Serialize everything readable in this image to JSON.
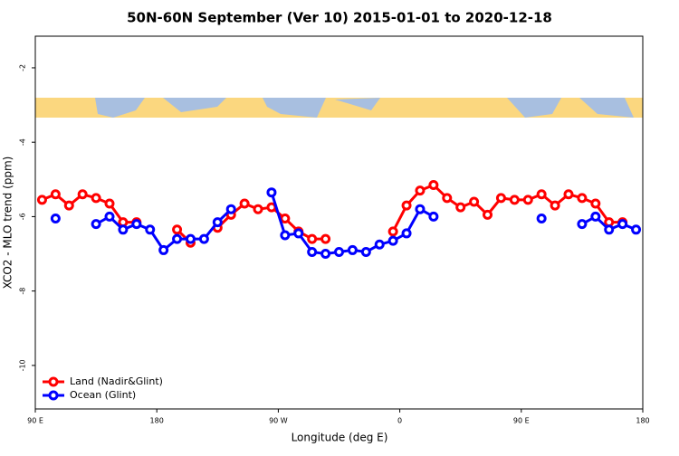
{
  "chart_data": {
    "type": "line",
    "title": "50N-60N September (Ver 10)   2015-01-01 to 2020-12-18",
    "x_label": "Longitude (deg E)",
    "y_label": "XCO2 - MLO trend (ppm)",
    "x": [
      95,
      105,
      115,
      125,
      135,
      145,
      155,
      165,
      175,
      185,
      195,
      205,
      215,
      225,
      235,
      245,
      255,
      265,
      275,
      285,
      295,
      305,
      315,
      325,
      335,
      345,
      355,
      365,
      375,
      385,
      395,
      405,
      415,
      425,
      435,
      445,
      455,
      465,
      475,
      485,
      495,
      505,
      515,
      525,
      535
    ],
    "xlim": [
      90,
      540
    ],
    "xticks": [
      {
        "value": 90,
        "label": "90 E"
      },
      180,
      {
        "value": 270,
        "label": "90 W"
      },
      {
        "value": 360,
        "label": "0"
      },
      {
        "value": 450,
        "label": "90 E"
      },
      {
        "value": 540,
        "label": "180"
      }
    ],
    "ylim": [
      -11.17,
      -1.15
    ],
    "yticks": [
      -10,
      -8,
      -6,
      -4,
      -2
    ],
    "legend": "bottom-left",
    "series": [
      {
        "name": "Land (Nadir&Glint)",
        "color": "#ff0000",
        "values": [
          -5.55,
          -5.4,
          -5.7,
          -5.4,
          -5.5,
          -5.65,
          -6.15,
          -6.15,
          null,
          null,
          -6.35,
          -6.7,
          null,
          -6.3,
          -5.95,
          -5.65,
          -5.8,
          -5.75,
          -6.05,
          -6.4,
          -6.6,
          -6.6,
          null,
          null,
          null,
          null,
          -6.4,
          -5.7,
          -5.3,
          -5.15,
          -5.5,
          -5.75,
          -5.6,
          -5.95,
          -5.5,
          -5.55,
          -5.55,
          -5.4,
          -5.7,
          -5.4,
          -5.5,
          -5.65,
          -6.15,
          -6.15,
          null
        ]
      },
      {
        "name": "Ocean (Glint)",
        "color": "#0000ff",
        "values": [
          null,
          -6.05,
          null,
          null,
          -6.2,
          -6.0,
          -6.35,
          -6.2,
          -6.35,
          -6.9,
          -6.6,
          -6.6,
          -6.6,
          -6.15,
          -5.8,
          null,
          null,
          -5.35,
          -6.5,
          -6.45,
          -6.95,
          -7.0,
          -6.95,
          -6.9,
          -6.95,
          -6.75,
          -6.65,
          -6.45,
          -5.8,
          -6.0,
          null,
          null,
          null,
          null,
          null,
          null,
          null,
          -6.05,
          null,
          null,
          -6.2,
          -6.0,
          -6.35,
          -6.2,
          -6.35
        ]
      }
    ]
  }
}
